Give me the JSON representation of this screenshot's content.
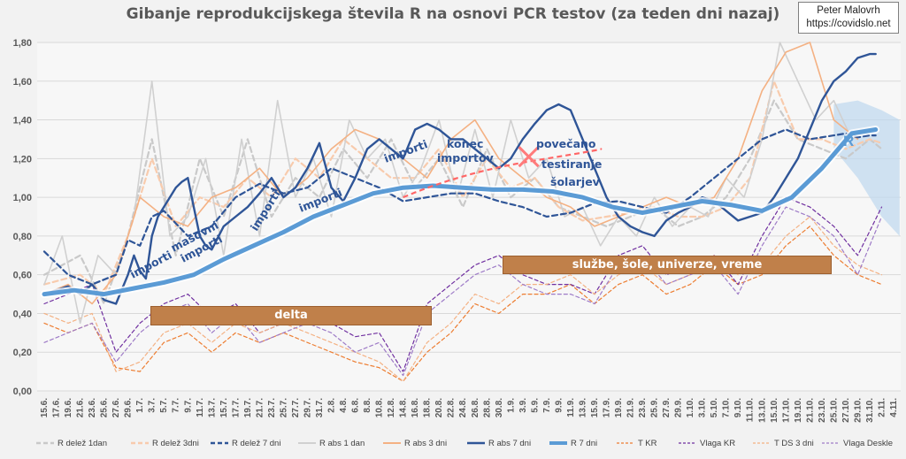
{
  "title": "Gibanje reprodukcijskega števila R na osnovi PCR testov (za teden dni nazaj)",
  "author": {
    "name": "Peter Malovrh",
    "url": "https://covidslo.net"
  },
  "bands": [
    {
      "label": "delta"
    },
    {
      "label": "službe, šole, univerze, vreme"
    }
  ],
  "annotations": [
    {
      "text": "importi"
    },
    {
      "text": "masovni"
    },
    {
      "text": "importi"
    },
    {
      "text": "importi"
    },
    {
      "text": "importi"
    },
    {
      "text": "importi"
    },
    {
      "text": "konec"
    },
    {
      "text": "importov"
    },
    {
      "text": "povečano"
    },
    {
      "text": "testiranje"
    },
    {
      "text": "šolarjev"
    },
    {
      "text": "R"
    }
  ],
  "chart_data": {
    "type": "line",
    "title": "Gibanje reprodukcijskega števila R na osnovi PCR testov (za teden dni nazaj)",
    "ylim": [
      0,
      1.8
    ],
    "y_ticks": [
      "0,00",
      "0,20",
      "0,40",
      "0,60",
      "0,80",
      "1,00",
      "1,20",
      "1,40",
      "1,60",
      "1,80"
    ],
    "y_tick_values": [
      0,
      0.2,
      0.4,
      0.6,
      0.8,
      1.0,
      1.2,
      1.4,
      1.6,
      1.8
    ],
    "x_ticks": [
      "15.6.",
      "17.6.",
      "19.6.",
      "21.6.",
      "23.6.",
      "25.6.",
      "27.6.",
      "29.6.",
      "1.7.",
      "3.7.",
      "5.7.",
      "7.7.",
      "9.7.",
      "11.7.",
      "13.7.",
      "15.7.",
      "17.7.",
      "19.7.",
      "21.7.",
      "23.7.",
      "25.7.",
      "27.7.",
      "29.7.",
      "31.7.",
      "2.8.",
      "4.8.",
      "6.8.",
      "8.8.",
      "10.8.",
      "12.8.",
      "14.8.",
      "16.8.",
      "18.8.",
      "20.8.",
      "22.8.",
      "24.8.",
      "26.8.",
      "28.8.",
      "30.8.",
      "1.9.",
      "3.9.",
      "5.9.",
      "7.9.",
      "9.9.",
      "11.9.",
      "13.9.",
      "15.9.",
      "17.9.",
      "19.9.",
      "21.9.",
      "23.9.",
      "25.9.",
      "27.9.",
      "29.9.",
      "1.10.",
      "3.10.",
      "5.10.",
      "7.10.",
      "9.10.",
      "11.10.",
      "13.10.",
      "15.10.",
      "17.10.",
      "19.10.",
      "21.10.",
      "23.10.",
      "25.10.",
      "27.10.",
      "29.10.",
      "31.10.",
      "2.11.",
      "4.11."
    ],
    "grid": true,
    "legend_position": "bottom",
    "series": [
      {
        "name": "R delež 1dan",
        "color": "#c9c9c9",
        "style": "dash-thick",
        "x": [
          0,
          6,
          10,
          14,
          18,
          22,
          26,
          30,
          34,
          38,
          42,
          46,
          50,
          54,
          58,
          62,
          66,
          70,
          74,
          78,
          82,
          86,
          90,
          94,
          98,
          102,
          106,
          110,
          114,
          118,
          122,
          126,
          130,
          134,
          138,
          140
        ],
        "y": [
          0.6,
          0.7,
          0.45,
          0.8,
          1.3,
          0.7,
          1.2,
          0.9,
          1.3,
          0.9,
          1.1,
          1.0,
          1.25,
          1.1,
          1.3,
          1.05,
          1.2,
          0.95,
          1.25,
          1.0,
          1.1,
          0.95,
          0.9,
          0.85,
          0.9,
          0.95,
          0.85,
          0.9,
          1.0,
          1.2,
          1.5,
          1.3,
          1.25,
          1.2,
          1.3,
          1.25
        ]
      },
      {
        "name": "R delež 3dni",
        "color": "#f8cbad",
        "style": "dash-thick",
        "x": [
          0,
          6,
          10,
          14,
          18,
          22,
          26,
          30,
          34,
          38,
          42,
          46,
          50,
          54,
          58,
          62,
          66,
          70,
          74,
          78,
          82,
          86,
          90,
          94,
          98,
          102,
          106,
          110,
          114,
          118,
          122,
          126,
          130,
          134,
          138,
          140
        ],
        "y": [
          0.55,
          0.6,
          0.5,
          0.8,
          1.2,
          0.85,
          1.0,
          0.95,
          1.1,
          1.0,
          1.2,
          1.1,
          1.3,
          1.2,
          1.1,
          1.1,
          1.25,
          1.0,
          1.2,
          1.05,
          1.1,
          0.95,
          0.88,
          0.9,
          0.92,
          0.95,
          0.9,
          0.9,
          0.95,
          1.1,
          1.6,
          1.3,
          1.3,
          1.25,
          1.3,
          1.28
        ]
      },
      {
        "name": "R delež 7 dni",
        "color": "#2f5597",
        "style": "dash-thick",
        "x": [
          0,
          4,
          8,
          12,
          14,
          16,
          18,
          20,
          24,
          28,
          32,
          36,
          40,
          44,
          48,
          52,
          56,
          60,
          64,
          68,
          72,
          76,
          80,
          84,
          88,
          92,
          96,
          100,
          104,
          108,
          112,
          116,
          120,
          124,
          128,
          132,
          134,
          136,
          138,
          139
        ],
        "y": [
          0.72,
          0.6,
          0.55,
          0.6,
          0.78,
          0.75,
          0.9,
          0.93,
          0.8,
          0.85,
          1.0,
          1.07,
          1.02,
          1.05,
          1.15,
          1.1,
          1.05,
          0.98,
          1.0,
          1.02,
          1.02,
          0.98,
          0.95,
          0.9,
          0.92,
          0.97,
          0.98,
          0.95,
          0.92,
          1.0,
          1.1,
          1.2,
          1.3,
          1.35,
          1.3,
          1.32,
          1.33,
          1.31,
          1.32,
          1.32
        ]
      },
      {
        "name": "R abs 1 dan",
        "color": "#d0d0d0",
        "style": "solid",
        "x": [
          0,
          3,
          6,
          9,
          12,
          15,
          18,
          21,
          24,
          27,
          30,
          33,
          36,
          39,
          42,
          45,
          48,
          51,
          54,
          57,
          60,
          63,
          66,
          69,
          72,
          75,
          78,
          81,
          84,
          87,
          90,
          93,
          96,
          99,
          102,
          105,
          108,
          111,
          114,
          117,
          120,
          123,
          126,
          129,
          132,
          135,
          138
        ],
        "y": [
          0.55,
          0.8,
          0.35,
          0.7,
          0.6,
          0.9,
          1.6,
          0.8,
          0.9,
          1.2,
          0.7,
          1.3,
          0.8,
          1.5,
          1.0,
          1.2,
          0.9,
          1.4,
          1.2,
          1.3,
          1.0,
          1.15,
          1.4,
          1.0,
          1.35,
          1.0,
          1.4,
          1.1,
          1.2,
          0.9,
          0.95,
          0.75,
          0.9,
          0.8,
          1.0,
          0.85,
          0.95,
          0.9,
          1.1,
          1.0,
          1.3,
          1.8,
          1.6,
          1.4,
          1.5,
          1.3,
          1.35
        ]
      },
      {
        "name": "R abs 3 dni",
        "color": "#f4b183",
        "style": "solid",
        "x": [
          0,
          4,
          8,
          12,
          16,
          20,
          24,
          28,
          32,
          36,
          40,
          44,
          48,
          52,
          56,
          60,
          64,
          68,
          72,
          76,
          80,
          84,
          88,
          92,
          96,
          100,
          104,
          108,
          112,
          116,
          120,
          124,
          128,
          132,
          136
        ],
        "y": [
          0.5,
          0.55,
          0.45,
          0.6,
          1.0,
          0.9,
          0.85,
          1.0,
          1.05,
          1.15,
          1.0,
          1.1,
          1.25,
          1.35,
          1.3,
          1.2,
          1.1,
          1.3,
          1.4,
          1.2,
          1.1,
          1.0,
          0.95,
          0.85,
          0.9,
          0.95,
          1.0,
          0.95,
          1.0,
          1.2,
          1.55,
          1.75,
          1.8,
          1.4,
          1.3
        ]
      },
      {
        "name": "R abs 7 dni",
        "color": "#2f5597",
        "style": "solid-mid",
        "x": [
          0,
          2,
          4,
          6,
          8,
          10,
          12,
          14,
          15,
          16,
          17,
          18,
          19,
          20,
          21,
          22,
          23,
          24,
          25,
          26,
          27,
          28,
          30,
          32,
          34,
          36,
          38,
          40,
          42,
          44,
          46,
          48,
          50,
          52,
          54,
          56,
          58,
          60,
          62,
          64,
          66,
          68,
          70,
          72,
          74,
          76,
          78,
          80,
          82,
          84,
          86,
          88,
          90,
          92,
          94,
          96,
          98,
          100,
          102,
          104,
          106,
          108,
          110,
          112,
          114,
          116,
          118,
          120,
          122,
          124,
          126,
          128,
          130,
          132,
          134,
          136,
          138,
          139
        ],
        "y": [
          0.5,
          0.52,
          0.54,
          0.5,
          0.55,
          0.47,
          0.45,
          0.6,
          0.7,
          0.62,
          0.58,
          0.8,
          0.9,
          0.95,
          1.0,
          1.05,
          1.08,
          1.1,
          0.95,
          0.8,
          0.75,
          0.73,
          0.85,
          0.9,
          0.95,
          1.02,
          1.1,
          1.0,
          1.05,
          1.15,
          1.28,
          1.05,
          0.98,
          1.1,
          1.25,
          1.3,
          1.25,
          1.2,
          1.35,
          1.38,
          1.35,
          1.3,
          1.3,
          1.25,
          1.2,
          1.15,
          1.2,
          1.3,
          1.38,
          1.45,
          1.48,
          1.45,
          1.3,
          1.15,
          1.0,
          0.9,
          0.85,
          0.82,
          0.8,
          0.88,
          0.92,
          0.95,
          1.0,
          0.98,
          0.93,
          0.88,
          0.9,
          0.92,
          1.0,
          1.1,
          1.2,
          1.35,
          1.5,
          1.6,
          1.65,
          1.72,
          1.74,
          1.74
        ]
      },
      {
        "name": "R 7 dni",
        "color": "#5b9bd5",
        "style": "solid-thick",
        "x": [
          0,
          5,
          10,
          15,
          20,
          25,
          30,
          35,
          40,
          45,
          50,
          55,
          60,
          65,
          70,
          75,
          80,
          85,
          90,
          95,
          100,
          105,
          110,
          115,
          120,
          125,
          130,
          135,
          139
        ],
        "y": [
          0.5,
          0.52,
          0.5,
          0.53,
          0.56,
          0.6,
          0.68,
          0.75,
          0.82,
          0.9,
          0.96,
          1.02,
          1.05,
          1.06,
          1.05,
          1.04,
          1.04,
          1.03,
          1.0,
          0.95,
          0.92,
          0.95,
          0.98,
          0.96,
          0.93,
          1.0,
          1.15,
          1.33,
          1.35
        ]
      },
      {
        "name": "T KR",
        "color": "#ed7d31",
        "style": "dash-thin",
        "x": [
          0,
          4,
          8,
          12,
          16,
          20,
          24,
          28,
          32,
          36,
          40,
          44,
          48,
          52,
          56,
          60,
          64,
          68,
          72,
          76,
          80,
          84,
          88,
          92,
          96,
          100,
          104,
          108,
          112,
          116,
          120,
          124,
          128,
          132,
          136,
          140
        ],
        "y": [
          0.35,
          0.3,
          0.35,
          0.12,
          0.1,
          0.25,
          0.3,
          0.2,
          0.3,
          0.25,
          0.3,
          0.25,
          0.2,
          0.15,
          0.12,
          0.05,
          0.2,
          0.3,
          0.45,
          0.4,
          0.5,
          0.5,
          0.55,
          0.45,
          0.55,
          0.6,
          0.5,
          0.55,
          0.65,
          0.55,
          0.6,
          0.75,
          0.85,
          0.7,
          0.6,
          0.55
        ]
      },
      {
        "name": "Vlaga KR",
        "color": "#7030a0",
        "style": "dash-thin",
        "x": [
          0,
          4,
          8,
          12,
          16,
          20,
          24,
          28,
          32,
          36,
          40,
          44,
          48,
          52,
          56,
          60,
          64,
          68,
          72,
          76,
          80,
          84,
          88,
          92,
          96,
          100,
          104,
          108,
          112,
          116,
          120,
          124,
          128,
          132,
          136,
          140
        ],
        "y": [
          0.45,
          0.5,
          0.55,
          0.2,
          0.35,
          0.45,
          0.5,
          0.38,
          0.45,
          0.3,
          0.35,
          0.4,
          0.35,
          0.28,
          0.3,
          0.1,
          0.45,
          0.55,
          0.65,
          0.7,
          0.6,
          0.55,
          0.55,
          0.5,
          0.7,
          0.75,
          0.6,
          0.65,
          0.7,
          0.55,
          0.8,
          1.0,
          0.95,
          0.85,
          0.7,
          0.95
        ]
      },
      {
        "name": "T DS 3 dni",
        "color": "#f4b183",
        "style": "dash-thin",
        "x": [
          0,
          4,
          8,
          12,
          16,
          20,
          24,
          28,
          32,
          36,
          40,
          44,
          48,
          52,
          56,
          60,
          64,
          68,
          72,
          76,
          80,
          84,
          88,
          92,
          96,
          100,
          104,
          108,
          112,
          116,
          120,
          124,
          128,
          132,
          136,
          140
        ],
        "y": [
          0.4,
          0.35,
          0.4,
          0.1,
          0.15,
          0.3,
          0.35,
          0.25,
          0.35,
          0.3,
          0.35,
          0.3,
          0.25,
          0.2,
          0.15,
          0.05,
          0.25,
          0.35,
          0.5,
          0.45,
          0.55,
          0.55,
          0.6,
          0.5,
          0.6,
          0.65,
          0.55,
          0.6,
          0.7,
          0.6,
          0.65,
          0.8,
          0.9,
          0.75,
          0.65,
          0.6
        ]
      },
      {
        "name": "Vlaga Deskle",
        "color": "#9e7bc7",
        "style": "dash-thin",
        "x": [
          0,
          4,
          8,
          12,
          16,
          20,
          24,
          28,
          32,
          36,
          40,
          44,
          48,
          52,
          56,
          60,
          64,
          68,
          72,
          76,
          80,
          84,
          88,
          92,
          96,
          100,
          104,
          108,
          112,
          116,
          120,
          124,
          128,
          132,
          136,
          140
        ],
        "y": [
          0.25,
          0.3,
          0.35,
          0.15,
          0.3,
          0.4,
          0.45,
          0.3,
          0.4,
          0.25,
          0.3,
          0.35,
          0.3,
          0.2,
          0.25,
          0.08,
          0.4,
          0.5,
          0.6,
          0.65,
          0.55,
          0.5,
          0.5,
          0.45,
          0.65,
          0.7,
          0.55,
          0.6,
          0.65,
          0.5,
          0.75,
          0.95,
          0.9,
          0.8,
          0.6,
          0.9
        ]
      }
    ],
    "forecast_band": {
      "x": [
        132,
        136,
        140,
        143
      ],
      "upper": [
        1.48,
        1.5,
        1.45,
        1.4
      ],
      "lower": [
        1.25,
        1.1,
        0.9,
        0.8
      ]
    }
  }
}
